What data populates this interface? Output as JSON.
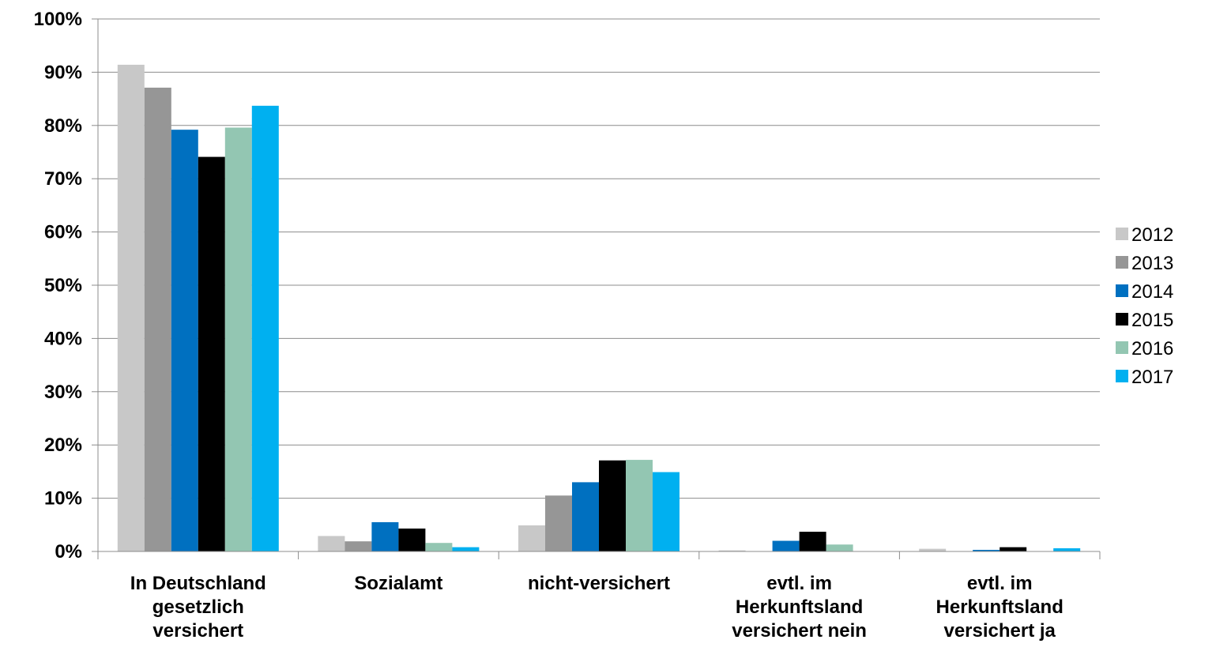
{
  "chart_data": {
    "type": "bar",
    "title": "",
    "xlabel": "",
    "ylabel": "",
    "ylim": [
      0,
      100
    ],
    "y_tick_step": 10,
    "y_tick_format": "percent",
    "grid": true,
    "legend_position": "right",
    "categories": [
      [
        "In Deutschland",
        "gesetzlich",
        "versichert"
      ],
      [
        "Sozialamt"
      ],
      [
        "nicht-versichert"
      ],
      [
        "evtl. im",
        "Herkunftsland",
        "versichert nein"
      ],
      [
        "evtl. im",
        "Herkunftsland",
        "versichert ja"
      ]
    ],
    "series": [
      {
        "name": "2012",
        "color": "#c8c8c8",
        "values": [
          91.4,
          2.9,
          4.9,
          0.2,
          0.5
        ]
      },
      {
        "name": "2013",
        "color": "#969696",
        "values": [
          87.1,
          1.9,
          10.5,
          0.0,
          0.0
        ]
      },
      {
        "name": "2014",
        "color": "#0070c0",
        "values": [
          79.2,
          5.5,
          13.0,
          2.0,
          0.3
        ]
      },
      {
        "name": "2015",
        "color": "#000000",
        "values": [
          74.1,
          4.3,
          17.1,
          3.7,
          0.8
        ]
      },
      {
        "name": "2016",
        "color": "#93c6b2",
        "values": [
          79.6,
          1.6,
          17.2,
          1.3,
          0.0
        ]
      },
      {
        "name": "2017",
        "color": "#00b0f0",
        "values": [
          83.7,
          0.8,
          14.9,
          0.0,
          0.6
        ]
      }
    ]
  }
}
